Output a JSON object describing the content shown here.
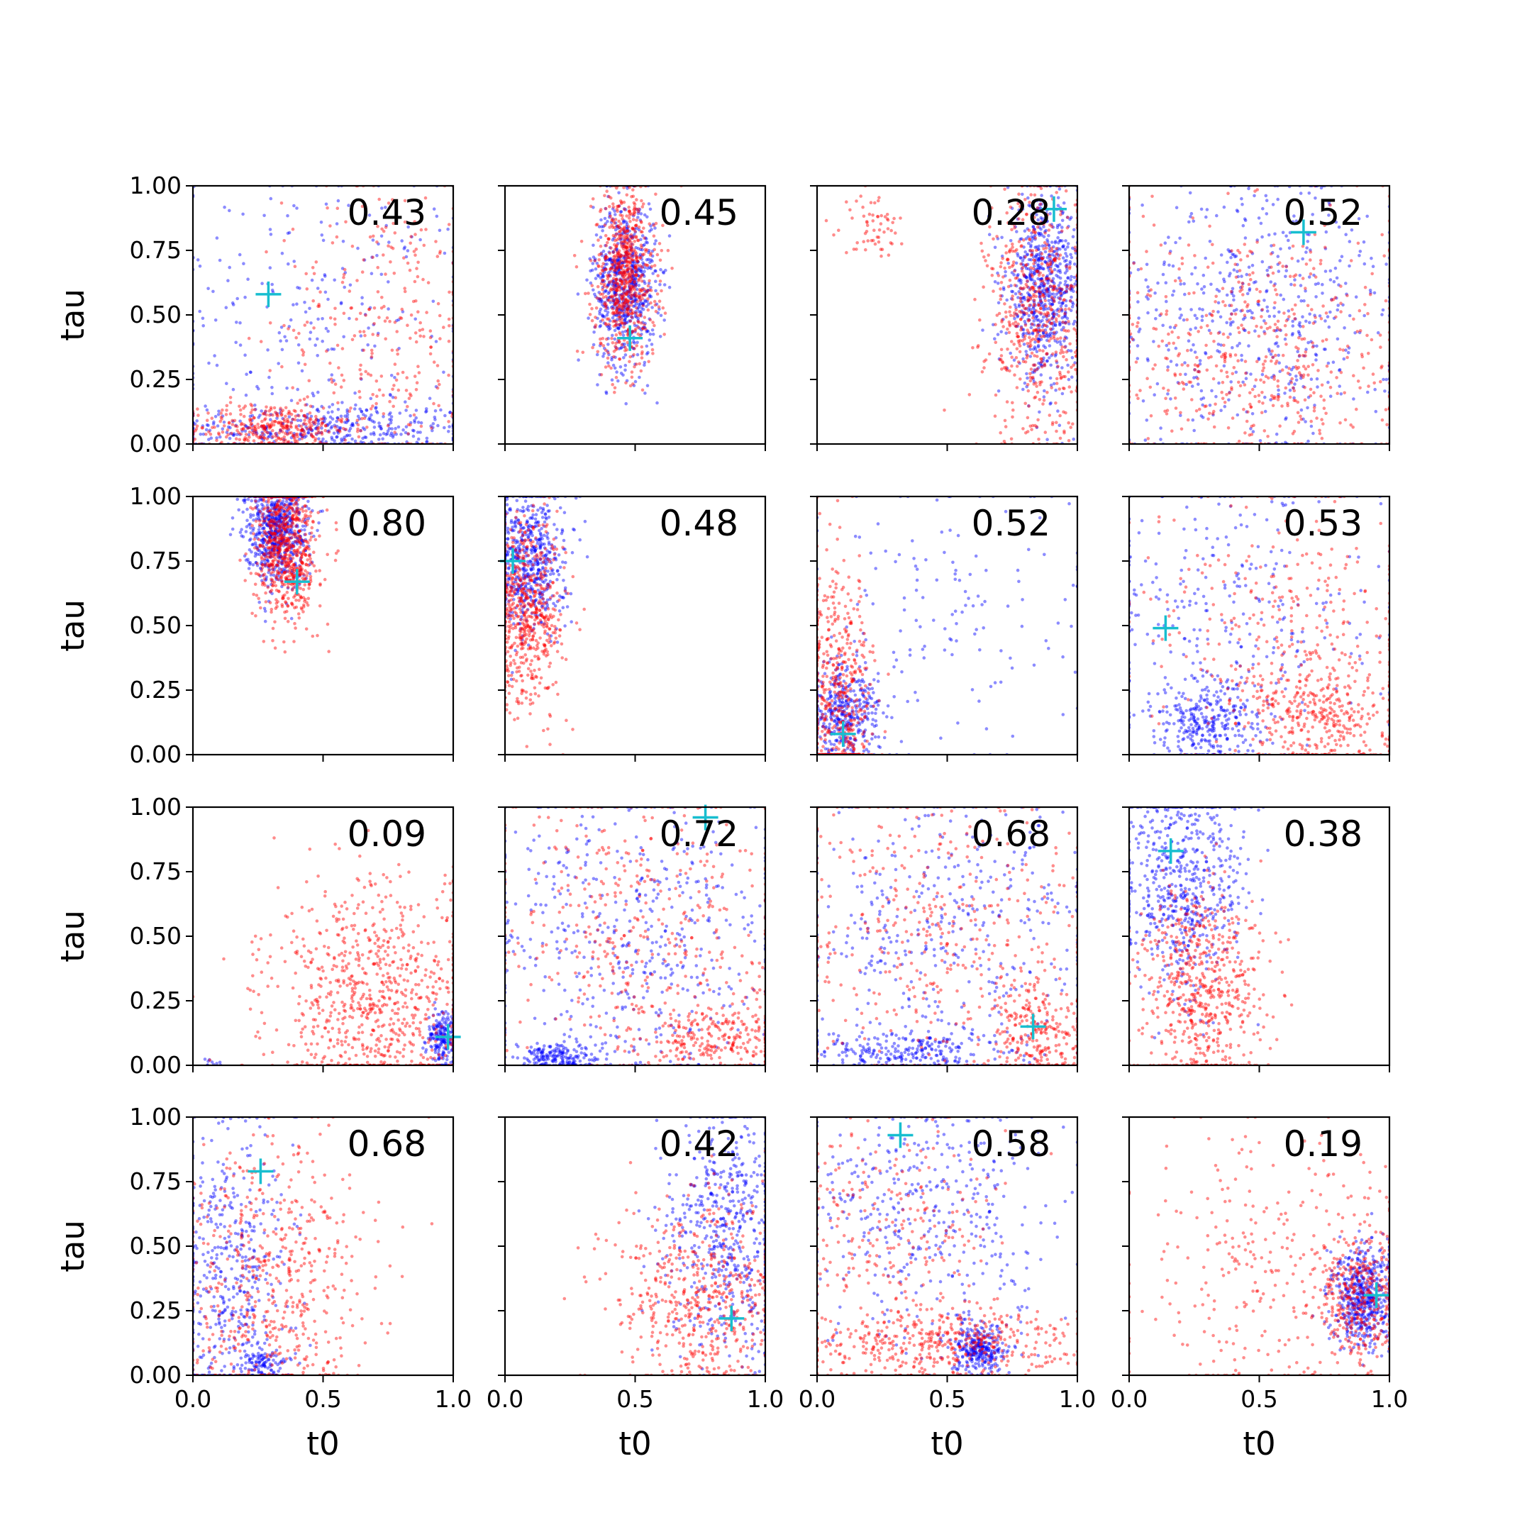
{
  "chart_data": {
    "type": "scatter",
    "layout": "4x4 grid",
    "xlabel": "t0",
    "ylabel": "tau",
    "xlim": [
      0,
      1
    ],
    "ylim": [
      0,
      1
    ],
    "x_tick_labels": [
      "0.0",
      "0.5",
      "1.0"
    ],
    "y_tick_labels": [
      "0.00",
      "0.25",
      "0.50",
      "0.75",
      "1.00"
    ],
    "series_colors": {
      "blue": "#0000ff",
      "red": "#ff0000",
      "marker": "#17becf"
    },
    "panels": [
      {
        "label": "0.43",
        "marker": [
          0.29,
          0.58
        ],
        "blue": [
          {
            "cx": 0.5,
            "cy": 0.06,
            "sx": 0.3,
            "sy": 0.05,
            "n": 400
          },
          {
            "cx": 0.5,
            "cy": 0.5,
            "sx": 0.3,
            "sy": 0.28,
            "n": 250
          }
        ],
        "red": [
          {
            "cx": 0.3,
            "cy": 0.06,
            "sx": 0.15,
            "sy": 0.05,
            "n": 350
          },
          {
            "cx": 0.75,
            "cy": 0.45,
            "sx": 0.2,
            "sy": 0.3,
            "n": 300
          }
        ]
      },
      {
        "label": "0.45",
        "marker": [
          0.48,
          0.41
        ],
        "blue": [
          {
            "cx": 0.46,
            "cy": 0.62,
            "sx": 0.06,
            "sy": 0.16,
            "n": 700
          }
        ],
        "red": [
          {
            "cx": 0.46,
            "cy": 0.65,
            "sx": 0.06,
            "sy": 0.17,
            "n": 700
          }
        ]
      },
      {
        "label": "0.28",
        "marker": [
          0.91,
          0.91
        ],
        "blue": [
          {
            "cx": 0.87,
            "cy": 0.6,
            "sx": 0.07,
            "sy": 0.17,
            "n": 700
          }
        ],
        "red": [
          {
            "cx": 0.85,
            "cy": 0.5,
            "sx": 0.1,
            "sy": 0.25,
            "n": 600
          },
          {
            "cx": 0.22,
            "cy": 0.85,
            "sx": 0.06,
            "sy": 0.06,
            "n": 60
          }
        ]
      },
      {
        "label": "0.52",
        "marker": [
          0.67,
          0.82
        ],
        "blue": [
          {
            "cx": 0.5,
            "cy": 0.5,
            "sx": 0.28,
            "sy": 0.28,
            "n": 550
          }
        ],
        "red": [
          {
            "cx": 0.5,
            "cy": 0.35,
            "sx": 0.28,
            "sy": 0.28,
            "n": 550
          }
        ]
      },
      {
        "label": "0.80",
        "marker": [
          0.4,
          0.67
        ],
        "blue": [
          {
            "cx": 0.32,
            "cy": 0.87,
            "sx": 0.06,
            "sy": 0.1,
            "n": 700
          }
        ],
        "red": [
          {
            "cx": 0.36,
            "cy": 0.8,
            "sx": 0.06,
            "sy": 0.14,
            "n": 700
          }
        ]
      },
      {
        "label": "0.48",
        "marker": [
          0.03,
          0.75
        ],
        "blue": [
          {
            "cx": 0.09,
            "cy": 0.75,
            "sx": 0.07,
            "sy": 0.14,
            "n": 600
          }
        ],
        "red": [
          {
            "cx": 0.09,
            "cy": 0.55,
            "sx": 0.07,
            "sy": 0.18,
            "n": 600
          }
        ]
      },
      {
        "label": "0.52",
        "marker": [
          0.1,
          0.08
        ],
        "blue": [
          {
            "cx": 0.1,
            "cy": 0.15,
            "sx": 0.07,
            "sy": 0.1,
            "n": 400
          },
          {
            "cx": 0.5,
            "cy": 0.5,
            "sx": 0.3,
            "sy": 0.3,
            "n": 150
          }
        ],
        "red": [
          {
            "cx": 0.08,
            "cy": 0.2,
            "sx": 0.07,
            "sy": 0.25,
            "n": 550
          }
        ]
      },
      {
        "label": "0.53",
        "marker": [
          0.14,
          0.49
        ],
        "blue": [
          {
            "cx": 0.3,
            "cy": 0.12,
            "sx": 0.1,
            "sy": 0.08,
            "n": 300
          },
          {
            "cx": 0.4,
            "cy": 0.55,
            "sx": 0.3,
            "sy": 0.3,
            "n": 300
          }
        ],
        "red": [
          {
            "cx": 0.75,
            "cy": 0.15,
            "sx": 0.15,
            "sy": 0.12,
            "n": 350
          },
          {
            "cx": 0.6,
            "cy": 0.5,
            "sx": 0.25,
            "sy": 0.28,
            "n": 300
          }
        ]
      },
      {
        "label": "0.09",
        "marker": [
          0.98,
          0.11
        ],
        "blue": [
          {
            "cx": 0.96,
            "cy": 0.1,
            "sx": 0.03,
            "sy": 0.06,
            "n": 200
          },
          {
            "cx": 0.06,
            "cy": 0.01,
            "sx": 0.02,
            "sy": 0.01,
            "n": 10
          }
        ],
        "red": [
          {
            "cx": 0.7,
            "cy": 0.25,
            "sx": 0.2,
            "sy": 0.22,
            "n": 800
          }
        ]
      },
      {
        "label": "0.72",
        "marker": [
          0.77,
          0.96
        ],
        "blue": [
          {
            "cx": 0.2,
            "cy": 0.03,
            "sx": 0.08,
            "sy": 0.03,
            "n": 200
          },
          {
            "cx": 0.5,
            "cy": 0.5,
            "sx": 0.3,
            "sy": 0.3,
            "n": 500
          }
        ],
        "red": [
          {
            "cx": 0.8,
            "cy": 0.1,
            "sx": 0.15,
            "sy": 0.07,
            "n": 250
          },
          {
            "cx": 0.5,
            "cy": 0.5,
            "sx": 0.3,
            "sy": 0.3,
            "n": 400
          }
        ]
      },
      {
        "label": "0.68",
        "marker": [
          0.83,
          0.15
        ],
        "blue": [
          {
            "cx": 0.35,
            "cy": 0.05,
            "sx": 0.2,
            "sy": 0.04,
            "n": 250
          },
          {
            "cx": 0.5,
            "cy": 0.5,
            "sx": 0.3,
            "sy": 0.3,
            "n": 400
          }
        ],
        "red": [
          {
            "cx": 0.85,
            "cy": 0.12,
            "sx": 0.1,
            "sy": 0.1,
            "n": 250
          },
          {
            "cx": 0.5,
            "cy": 0.5,
            "sx": 0.3,
            "sy": 0.3,
            "n": 400
          }
        ]
      },
      {
        "label": "0.38",
        "marker": [
          0.16,
          0.83
        ],
        "blue": [
          {
            "cx": 0.2,
            "cy": 0.7,
            "sx": 0.12,
            "sy": 0.2,
            "n": 600
          }
        ],
        "red": [
          {
            "cx": 0.28,
            "cy": 0.3,
            "sx": 0.12,
            "sy": 0.2,
            "n": 600
          }
        ]
      },
      {
        "label": "0.68",
        "marker": [
          0.26,
          0.79
        ],
        "blue": [
          {
            "cx": 0.15,
            "cy": 0.4,
            "sx": 0.12,
            "sy": 0.3,
            "n": 450
          },
          {
            "cx": 0.27,
            "cy": 0.05,
            "sx": 0.05,
            "sy": 0.03,
            "n": 100
          }
        ],
        "red": [
          {
            "cx": 0.3,
            "cy": 0.35,
            "sx": 0.18,
            "sy": 0.28,
            "n": 550
          }
        ]
      },
      {
        "label": "0.42",
        "marker": [
          0.87,
          0.22
        ],
        "blue": [
          {
            "cx": 0.85,
            "cy": 0.55,
            "sx": 0.12,
            "sy": 0.25,
            "n": 550
          }
        ],
        "red": [
          {
            "cx": 0.75,
            "cy": 0.3,
            "sx": 0.17,
            "sy": 0.2,
            "n": 550
          }
        ]
      },
      {
        "label": "0.58",
        "marker": [
          0.32,
          0.93
        ],
        "blue": [
          {
            "cx": 0.62,
            "cy": 0.1,
            "sx": 0.05,
            "sy": 0.05,
            "n": 300
          },
          {
            "cx": 0.45,
            "cy": 0.6,
            "sx": 0.25,
            "sy": 0.25,
            "n": 400
          }
        ],
        "red": [
          {
            "cx": 0.45,
            "cy": 0.12,
            "sx": 0.25,
            "sy": 0.07,
            "n": 450
          },
          {
            "cx": 0.3,
            "cy": 0.5,
            "sx": 0.2,
            "sy": 0.25,
            "n": 250
          }
        ]
      },
      {
        "label": "0.19",
        "marker": [
          0.95,
          0.31
        ],
        "blue": [
          {
            "cx": 0.9,
            "cy": 0.3,
            "sx": 0.06,
            "sy": 0.1,
            "n": 550
          }
        ],
        "red": [
          {
            "cx": 0.88,
            "cy": 0.3,
            "sx": 0.08,
            "sy": 0.13,
            "n": 350
          },
          {
            "cx": 0.55,
            "cy": 0.4,
            "sx": 0.25,
            "sy": 0.28,
            "n": 300
          }
        ]
      }
    ]
  }
}
